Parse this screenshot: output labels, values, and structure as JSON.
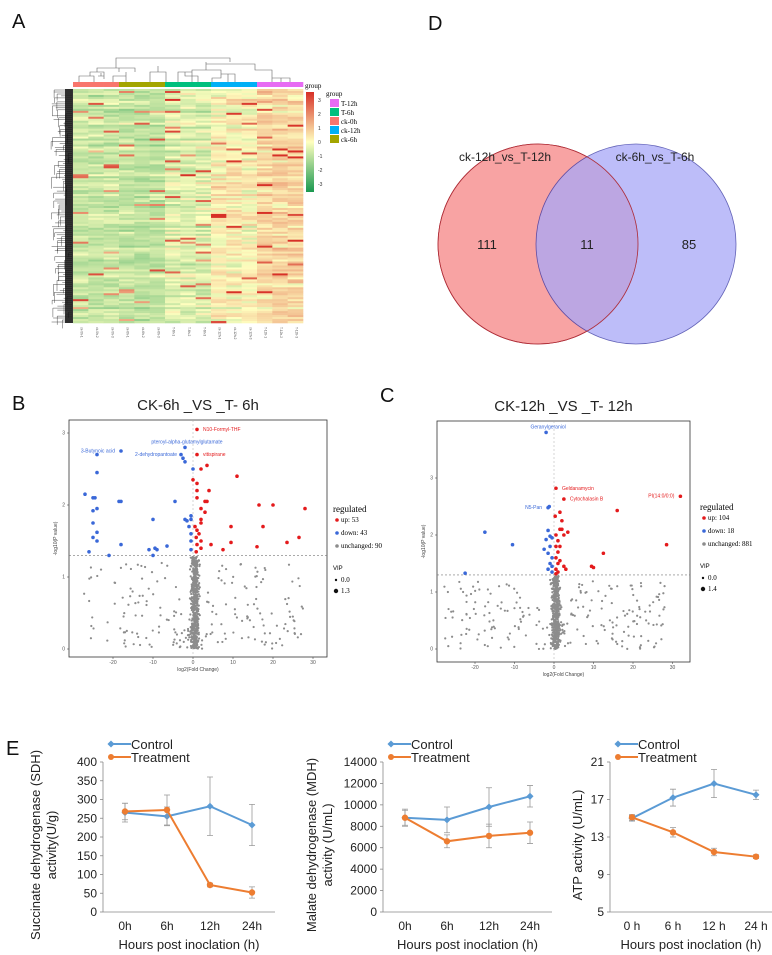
{
  "panels": {
    "A": "A",
    "B": "B",
    "C": "C",
    "D": "D",
    "E": "E"
  },
  "chart_data": [
    {
      "panel": "A",
      "type": "heatmap",
      "legend_title": "group",
      "groups": [
        {
          "name": "T-12h",
          "color": "#E76BF3"
        },
        {
          "name": "T-6h",
          "color": "#00BF7D"
        },
        {
          "name": "ck-0h",
          "color": "#F8766D"
        },
        {
          "name": "ck-12h",
          "color": "#00B0F6"
        },
        {
          "name": "ck-6h",
          "color": "#A3A500"
        }
      ],
      "column_groups": [
        "ck-0h",
        "ck-0h",
        "ck-0h",
        "ck-6h",
        "ck-6h",
        "ck-6h",
        "T-6h",
        "T-6h",
        "T-6h",
        "ck-12h",
        "ck-12h",
        "ck-12h",
        "T-12h",
        "T-12h",
        "T-12h"
      ],
      "columns": [
        "ck-0h-1",
        "ck-0h-2",
        "ck-0h-3",
        "ck-6h-1",
        "ck-6h-2",
        "ck-6h-3",
        "T-6h-1",
        "T-6h-2",
        "T-6h-3",
        "ck-12h-1",
        "ck-12h-2",
        "ck-12h-3",
        "T-12h-1",
        "T-12h-2",
        "T-12h-3"
      ],
      "color_scale": {
        "range": [
          -3,
          3
        ],
        "ticks": [
          "3",
          "2",
          "1",
          "0",
          "-1",
          "-2",
          "-3"
        ],
        "low": "#1A9850",
        "mid": "#FFFFBF",
        "high": "#D73027"
      }
    },
    {
      "panel": "B",
      "type": "scatter",
      "title": "CK-6h _VS _T- 6h",
      "xlabel": "log2(Fold Change)",
      "ylabel": "-log10(P value)",
      "xlim": [
        -30,
        32
      ],
      "ylim": [
        -0.1,
        3.2
      ],
      "xticks": [
        "-20",
        "-10",
        "0",
        "10",
        "20",
        "30"
      ],
      "yticks": [
        "0",
        "1",
        "2",
        "3"
      ],
      "threshold_y": 1.3,
      "legend": {
        "title": "regulated",
        "up": "up: 53",
        "down": "down: 43",
        "unchanged": "unchanged: 90",
        "vip_title": "VIP",
        "vip": [
          "0.0",
          "1.3"
        ]
      },
      "colors": {
        "up": "#E41A1C",
        "down": "#3A68D8",
        "unchanged": "#8C8C8C"
      },
      "labels": [
        {
          "text": "N10-Formyl-THF",
          "x": 1,
          "y": 3.05,
          "type": "up"
        },
        {
          "text": "pteroyl-alpha-glutamylglutamate",
          "x": -2,
          "y": 2.8,
          "type": "down"
        },
        {
          "text": "3-Butynoic acid",
          "x": -18,
          "y": 2.75,
          "type": "down"
        },
        {
          "text": "2-dehydropantoate",
          "x": -3,
          "y": 2.7,
          "type": "down"
        },
        {
          "text": "vitispirane",
          "x": 1,
          "y": 2.7,
          "type": "up"
        }
      ],
      "up": [
        [
          2,
          2.5
        ],
        [
          3.5,
          2.55
        ],
        [
          11,
          2.4
        ],
        [
          0,
          2.35
        ],
        [
          1,
          2.3
        ],
        [
          1,
          2.2
        ],
        [
          4,
          2.2
        ],
        [
          1,
          2.1
        ],
        [
          3,
          2.05
        ],
        [
          3.5,
          2.05
        ],
        [
          2,
          1.95
        ],
        [
          3,
          1.9
        ],
        [
          2,
          1.8
        ],
        [
          2,
          1.75
        ],
        [
          0.5,
          1.7
        ],
        [
          16.5,
          2.0
        ],
        [
          20,
          2.0
        ],
        [
          28,
          1.95
        ],
        [
          9.5,
          1.7
        ],
        [
          17.5,
          1.7
        ],
        [
          1,
          1.65
        ],
        [
          1.5,
          1.6
        ],
        [
          0.8,
          1.55
        ],
        [
          2,
          1.5
        ],
        [
          4.5,
          1.45
        ],
        [
          9.5,
          1.48
        ],
        [
          23.5,
          1.48
        ],
        [
          26.5,
          1.55
        ],
        [
          16,
          1.42
        ],
        [
          7.5,
          1.38
        ],
        [
          1,
          1.45
        ],
        [
          2,
          1.4
        ],
        [
          0.8,
          1.35
        ]
      ],
      "down": [
        [
          -2.5,
          2.65
        ],
        [
          -2,
          2.6
        ],
        [
          0,
          2.5
        ],
        [
          -24,
          2.7
        ],
        [
          -24,
          2.45
        ],
        [
          -27,
          2.15
        ],
        [
          -25,
          2.1
        ],
        [
          -24.5,
          2.1
        ],
        [
          -18.5,
          2.05
        ],
        [
          -18,
          2.05
        ],
        [
          -24,
          1.95
        ],
        [
          -25,
          1.92
        ],
        [
          -4.5,
          2.05
        ],
        [
          -10,
          1.8
        ],
        [
          -2,
          1.8
        ],
        [
          -1.5,
          1.78
        ],
        [
          -0.5,
          1.8
        ],
        [
          -0.5,
          1.85
        ],
        [
          -25,
          1.75
        ],
        [
          -24,
          1.62
        ],
        [
          -25,
          1.55
        ],
        [
          -24,
          1.5
        ],
        [
          -18,
          1.45
        ],
        [
          -1,
          1.7
        ],
        [
          -0.5,
          1.6
        ],
        [
          -0.5,
          1.5
        ],
        [
          -6.5,
          1.43
        ],
        [
          -9.5,
          1.4
        ],
        [
          -9,
          1.38
        ],
        [
          -11,
          1.38
        ],
        [
          -26,
          1.35
        ],
        [
          -10,
          1.3
        ],
        [
          -21,
          1.3
        ],
        [
          -0.5,
          1.38
        ]
      ]
    },
    {
      "panel": "C",
      "type": "scatter",
      "title": "CK-12h _VS _T- 12h",
      "xlabel": "log2(Fold Change)",
      "ylabel": "-log10(P value)",
      "xlim": [
        -29,
        34
      ],
      "ylim": [
        -0.2,
        4.0
      ],
      "xticks": [
        "-20",
        "-10",
        "0",
        "10",
        "20",
        "30"
      ],
      "yticks": [
        "0",
        "1",
        "2",
        "3"
      ],
      "threshold_y": 1.3,
      "legend": {
        "title": "regulated",
        "up": "up: 104",
        "down": "down: 18",
        "unchanged": "unchanged: 881",
        "vip_title": "VIP",
        "vip": [
          "0.0",
          "1.4"
        ]
      },
      "colors": {
        "up": "#E41A1C",
        "down": "#3A68D8",
        "unchanged": "#8C8C8C"
      },
      "labels": [
        {
          "text": "Geranylgeraniol",
          "x": -2,
          "y": 3.8,
          "type": "down"
        },
        {
          "text": "Geldanamycin",
          "x": 0.5,
          "y": 2.82,
          "type": "up"
        },
        {
          "text": "Cytochalasin B",
          "x": 2.5,
          "y": 2.63,
          "type": "up"
        },
        {
          "text": "PI(14:0/0:0)",
          "x": 32,
          "y": 2.68,
          "type": "up"
        },
        {
          "text": "N5-Pan",
          "x": -1.5,
          "y": 2.48,
          "type": "down"
        }
      ],
      "up": [
        [
          16,
          2.43
        ],
        [
          1.5,
          2.4
        ],
        [
          2,
          2.25
        ],
        [
          0.3,
          2.33
        ],
        [
          1.5,
          2.1
        ],
        [
          3.5,
          2.05
        ],
        [
          2,
          2.1
        ],
        [
          2.5,
          2.0
        ],
        [
          28.5,
          1.83
        ],
        [
          12.5,
          1.68
        ],
        [
          9.5,
          1.45
        ],
        [
          10,
          1.43
        ],
        [
          2.5,
          1.45
        ],
        [
          3,
          1.4
        ],
        [
          1,
          1.9
        ],
        [
          1,
          1.7
        ],
        [
          1,
          1.5
        ],
        [
          0.5,
          2.0
        ],
        [
          0.5,
          1.8
        ],
        [
          0.5,
          1.6
        ],
        [
          0.5,
          1.4
        ],
        [
          0.5,
          1.32
        ],
        [
          1,
          1.35
        ],
        [
          1.5,
          1.55
        ],
        [
          1.5,
          1.8
        ]
      ],
      "down": [
        [
          -1.2,
          2.5
        ],
        [
          -17.5,
          2.05
        ],
        [
          -10.5,
          1.83
        ],
        [
          -22.5,
          1.33
        ],
        [
          -1.5,
          2.08
        ],
        [
          -2,
          1.92
        ],
        [
          -1,
          1.98
        ],
        [
          -2.5,
          1.75
        ],
        [
          -1.5,
          1.68
        ],
        [
          -0.5,
          1.6
        ],
        [
          -1,
          1.8
        ],
        [
          -0.5,
          1.45
        ],
        [
          -0.5,
          1.35
        ],
        [
          -1,
          1.5
        ],
        [
          -0.5,
          1.95
        ],
        [
          -1.5,
          1.4
        ]
      ]
    },
    {
      "panel": "D",
      "type": "venn",
      "sets": [
        {
          "name": "ck-12h_vs_T-12h",
          "only": "111",
          "fill": "#F8A3A3",
          "stroke": "#B0303A"
        },
        {
          "name": "ck-6h_vs_T-6h",
          "only": "85",
          "fill": "#A8A8F8",
          "stroke": "#3030A0"
        }
      ],
      "intersection": "11"
    },
    {
      "panel": "E",
      "type": "line",
      "categories": [
        "0h",
        "6h",
        "12h",
        "24h"
      ],
      "xlabel": "Hours post inoclation (h)",
      "ylabel": [
        "Succinate dehydrogenase (SDH)",
        "activity(U/g)"
      ],
      "ylim": [
        0,
        400
      ],
      "yticks": [
        "0",
        "50",
        "100",
        "150",
        "200",
        "250",
        "300",
        "350",
        "400"
      ],
      "series": [
        {
          "name": "Control",
          "color": "#5B9BD5",
          "values": [
            265,
            255,
            282,
            232
          ],
          "error": [
            25,
            25,
            78,
            55
          ]
        },
        {
          "name": "Treatment",
          "color": "#ED7D31",
          "values": [
            268,
            272,
            72,
            52
          ],
          "error": [
            22,
            40,
            5,
            15
          ]
        }
      ]
    },
    {
      "panel": "E",
      "type": "line",
      "categories": [
        "0h",
        "6h",
        "12h",
        "24h"
      ],
      "xlabel": "Hours post inoclation (h)",
      "ylabel": [
        "Malate dehydrogenase (MDH)",
        "activity (U/mL)"
      ],
      "ylim": [
        0,
        14000
      ],
      "yticks": [
        "0",
        "2000",
        "4000",
        "6000",
        "8000",
        "10000",
        "12000",
        "14000"
      ],
      "series": [
        {
          "name": "Control",
          "color": "#5B9BD5",
          "values": [
            8800,
            8600,
            9800,
            10800
          ],
          "error": [
            800,
            1200,
            1800,
            1000
          ]
        },
        {
          "name": "Treatment",
          "color": "#ED7D31",
          "values": [
            8800,
            6600,
            7100,
            7400
          ],
          "error": [
            700,
            600,
            1100,
            1000
          ]
        }
      ]
    },
    {
      "panel": "E",
      "type": "line",
      "categories": [
        "0 h",
        "6 h",
        "12 h",
        "24 h"
      ],
      "xlabel": "Hours post inoclation (h)",
      "ylabel": [
        "ATP activity (U/mL)"
      ],
      "ylim": [
        5,
        21
      ],
      "yticks": [
        "5",
        "9",
        "13",
        "17",
        "21"
      ],
      "series": [
        {
          "name": "Control",
          "color": "#5B9BD5",
          "values": [
            15,
            17.2,
            18.7,
            17.5
          ],
          "error": [
            0.3,
            0.9,
            1.5,
            0.5
          ]
        },
        {
          "name": "Treatment",
          "color": "#ED7D31",
          "values": [
            15.1,
            13.5,
            11.4,
            10.9
          ],
          "error": [
            0.3,
            0.5,
            0.4,
            0.2
          ]
        }
      ]
    }
  ]
}
